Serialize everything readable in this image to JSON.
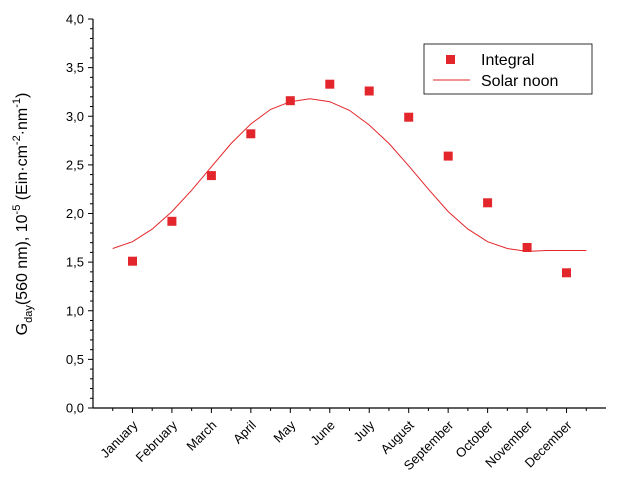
{
  "chart_data": {
    "type": "scatter",
    "title": "",
    "xlabel": "",
    "ylabel": {
      "G": "G",
      "sub": "day",
      "mid": "(560 nm), 10",
      "sup5": "-5",
      "unit_open": " (Ein·cm",
      "sup2": "-2",
      "unit_mid": "·nm",
      "sup1": "-1",
      "close": ")"
    },
    "categories": [
      "January",
      "February",
      "March",
      "April",
      "May",
      "June",
      "July",
      "August",
      "September",
      "October",
      "November",
      "December"
    ],
    "ylim": [
      0.0,
      4.0
    ],
    "yticks": [
      "0,0",
      "0,5",
      "1,0",
      "1,5",
      "2,0",
      "2,5",
      "3,0",
      "3,5",
      "4,0"
    ],
    "ytick_values": [
      0.0,
      0.5,
      1.0,
      1.5,
      2.0,
      2.5,
      3.0,
      3.5,
      4.0
    ],
    "series": [
      {
        "name": "Integral",
        "kind": "scatter",
        "marker": "square",
        "color": "#e3262b",
        "values": [
          1.51,
          1.92,
          2.39,
          2.82,
          3.16,
          3.33,
          3.26,
          2.99,
          2.59,
          2.11,
          1.65,
          1.39
        ]
      },
      {
        "name": "Solar noon",
        "kind": "line",
        "color": "#e3262b",
        "x": [
          0.5,
          1.0,
          1.5,
          2.0,
          2.5,
          3.0,
          3.5,
          4.0,
          4.5,
          5.0,
          5.5,
          6.0,
          6.5,
          7.0,
          7.5,
          8.0,
          8.5,
          9.0,
          9.5,
          10.0,
          10.5,
          11.0,
          11.5,
          12.0,
          12.5
        ],
        "values": [
          1.64,
          1.71,
          1.84,
          2.02,
          2.24,
          2.48,
          2.72,
          2.92,
          3.07,
          3.15,
          3.18,
          3.15,
          3.06,
          2.91,
          2.72,
          2.49,
          2.25,
          2.02,
          1.84,
          1.71,
          1.64,
          1.61,
          1.62,
          1.62,
          1.62
        ]
      }
    ],
    "legend": {
      "placement": "top-right",
      "entries": [
        "Integral",
        "Solar noon"
      ]
    },
    "grid": false
  }
}
